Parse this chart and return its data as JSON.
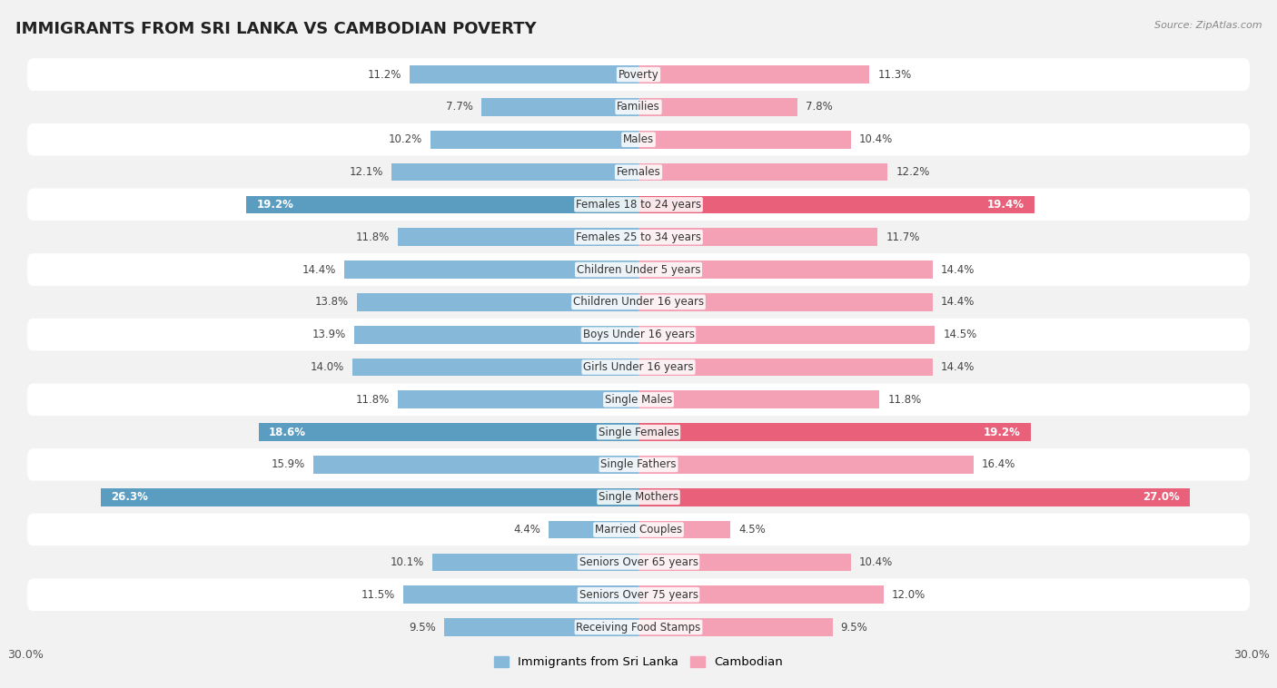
{
  "title": "IMMIGRANTS FROM SRI LANKA VS CAMBODIAN POVERTY",
  "source": "Source: ZipAtlas.com",
  "categories": [
    "Poverty",
    "Families",
    "Males",
    "Females",
    "Females 18 to 24 years",
    "Females 25 to 34 years",
    "Children Under 5 years",
    "Children Under 16 years",
    "Boys Under 16 years",
    "Girls Under 16 years",
    "Single Males",
    "Single Females",
    "Single Fathers",
    "Single Mothers",
    "Married Couples",
    "Seniors Over 65 years",
    "Seniors Over 75 years",
    "Receiving Food Stamps"
  ],
  "sri_lanka_values": [
    11.2,
    7.7,
    10.2,
    12.1,
    19.2,
    11.8,
    14.4,
    13.8,
    13.9,
    14.0,
    11.8,
    18.6,
    15.9,
    26.3,
    4.4,
    10.1,
    11.5,
    9.5
  ],
  "cambodian_values": [
    11.3,
    7.8,
    10.4,
    12.2,
    19.4,
    11.7,
    14.4,
    14.4,
    14.5,
    14.4,
    11.8,
    19.2,
    16.4,
    27.0,
    4.5,
    10.4,
    12.0,
    9.5
  ],
  "sri_lanka_color": "#85b8d9",
  "cambodian_color": "#f4a0b5",
  "sri_lanka_highlight_color": "#5a9dc0",
  "cambodian_highlight_color": "#e8607a",
  "highlight_rows": [
    4,
    11,
    13
  ],
  "row_colors_even": "#f2f2f2",
  "row_colors_odd": "#ffffff",
  "bar_height": 0.55,
  "xlim": 30.0,
  "legend_labels": [
    "Immigrants from Sri Lanka",
    "Cambodian"
  ],
  "title_fontsize": 13,
  "label_fontsize": 8.5,
  "category_fontsize": 8.5
}
